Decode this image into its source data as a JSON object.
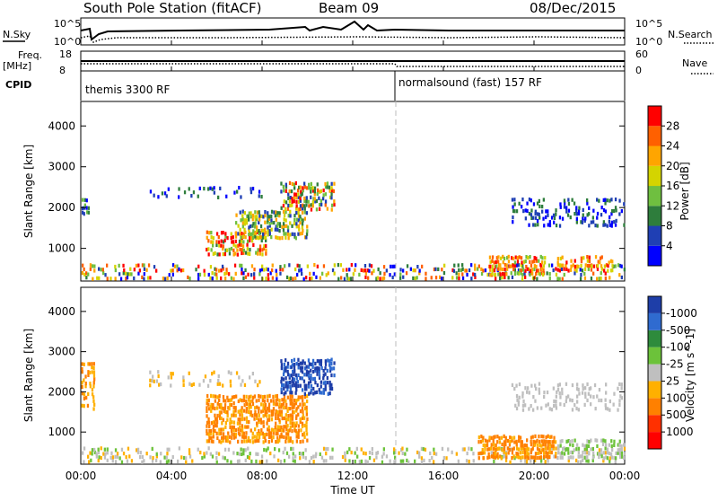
{
  "header": {
    "station": "South Pole Station (fitACF)",
    "beam": "Beam 09",
    "date": "08/Dec/2015"
  },
  "top_panels": {
    "nsky_label": "N.Sky",
    "nsearch_label": "N.Search",
    "noise_ticks": [
      "10^5",
      "10^0"
    ],
    "freq_label": "Freq.",
    "freq_unit": "[MHz]",
    "freq_ticks": [
      "18",
      "8"
    ],
    "nave_label": "Nave",
    "nave_ticks": [
      "60",
      "0"
    ],
    "cpid_label": "CPID",
    "cpid_segments": [
      "themis 3300 RF",
      "normalsound (fast) 157 RF"
    ]
  },
  "xaxis": {
    "label": "Time UT",
    "ticks": [
      "00:00",
      "04:00",
      "08:00",
      "12:00",
      "16:00",
      "20:00",
      "00:00"
    ]
  },
  "chart_data": [
    {
      "type": "heatmap",
      "ylabel": "Slant Range [km]",
      "yticks": [
        "1000",
        "2000",
        "3000",
        "4000"
      ],
      "ylim": [
        200,
        4600
      ],
      "xlim_hours": [
        0,
        24
      ],
      "colorbar": {
        "label": "Power [dB]",
        "ticks": [
          "4",
          "8",
          "12",
          "16",
          "20",
          "24",
          "28"
        ],
        "colors": [
          "#0000ff",
          "#1f3fb4",
          "#2e7d3c",
          "#6fbf40",
          "#d4d400",
          "#ffa500",
          "#ff6000",
          "#ff0000"
        ]
      },
      "regions": [
        {
          "t0": 0.0,
          "t1": 24.0,
          "r0": 200,
          "r1": 600,
          "density": 0.35,
          "levels": [
            0,
            1,
            2,
            3,
            4,
            5,
            6,
            7
          ]
        },
        {
          "t0": 5.5,
          "t1": 8.2,
          "r0": 800,
          "r1": 1400,
          "density": 0.7,
          "levels": [
            2,
            3,
            4,
            5,
            6,
            7
          ]
        },
        {
          "t0": 6.8,
          "t1": 10.0,
          "r0": 1200,
          "r1": 1900,
          "density": 0.6,
          "levels": [
            1,
            2,
            3,
            4,
            5
          ]
        },
        {
          "t0": 8.8,
          "t1": 11.2,
          "r0": 1900,
          "r1": 2600,
          "density": 0.65,
          "levels": [
            1,
            2,
            3,
            4,
            5,
            6,
            7
          ]
        },
        {
          "t0": 3.0,
          "t1": 8.0,
          "r0": 2200,
          "r1": 2500,
          "density": 0.15,
          "levels": [
            0,
            1,
            2
          ]
        },
        {
          "t0": 0.0,
          "t1": 0.4,
          "r0": 1800,
          "r1": 2200,
          "density": 0.5,
          "levels": [
            0,
            1,
            2,
            3
          ]
        },
        {
          "t0": 18.0,
          "t1": 20.5,
          "r0": 300,
          "r1": 800,
          "density": 0.7,
          "levels": [
            3,
            4,
            5,
            6,
            7
          ]
        },
        {
          "t0": 19.0,
          "t1": 24.0,
          "r0": 1500,
          "r1": 2200,
          "density": 0.3,
          "levels": [
            0,
            1,
            2
          ]
        },
        {
          "t0": 21.0,
          "t1": 23.5,
          "r0": 400,
          "r1": 800,
          "density": 0.5,
          "levels": [
            4,
            5,
            6,
            7
          ]
        }
      ]
    },
    {
      "type": "heatmap",
      "ylabel": "Slant Range [km]",
      "yticks": [
        "1000",
        "2000",
        "3000",
        "4000"
      ],
      "ylim": [
        200,
        4600
      ],
      "xlim_hours": [
        0,
        24
      ],
      "colorbar": {
        "label": "Velocity [m s^-1]",
        "ticks": [
          "1000",
          "500",
          "100",
          "25",
          "-25",
          "-100",
          "-500",
          "-1000"
        ],
        "colors": [
          "#1e3ea8",
          "#2f6bd0",
          "#2e8b3c",
          "#6cc23a",
          "#bfbfbf",
          "#ffb000",
          "#ff8000",
          "#ff3000",
          "#ff0000"
        ]
      },
      "regions": [
        {
          "t0": 0.0,
          "t1": 24.0,
          "r0": 200,
          "r1": 600,
          "density": 0.3,
          "levels": [
            3,
            4,
            4,
            5
          ]
        },
        {
          "t0": 5.5,
          "t1": 10.0,
          "r0": 700,
          "r1": 1900,
          "density": 0.7,
          "levels": [
            5,
            6,
            6
          ]
        },
        {
          "t0": 8.8,
          "t1": 11.2,
          "r0": 1900,
          "r1": 2800,
          "density": 0.65,
          "levels": [
            0,
            1,
            0
          ]
        },
        {
          "t0": 3.0,
          "t1": 8.0,
          "r0": 2100,
          "r1": 2500,
          "density": 0.2,
          "levels": [
            4,
            5
          ]
        },
        {
          "t0": 0.0,
          "t1": 0.6,
          "r0": 1500,
          "r1": 2700,
          "density": 0.4,
          "levels": [
            5,
            6
          ]
        },
        {
          "t0": 17.5,
          "t1": 21.0,
          "r0": 300,
          "r1": 900,
          "density": 0.75,
          "levels": [
            6,
            6,
            5
          ]
        },
        {
          "t0": 19.0,
          "t1": 24.0,
          "r0": 1500,
          "r1": 2200,
          "density": 0.3,
          "levels": [
            4,
            4
          ]
        },
        {
          "t0": 21.0,
          "t1": 24.0,
          "r0": 300,
          "r1": 800,
          "density": 0.5,
          "levels": [
            4,
            4,
            3
          ]
        }
      ]
    }
  ]
}
